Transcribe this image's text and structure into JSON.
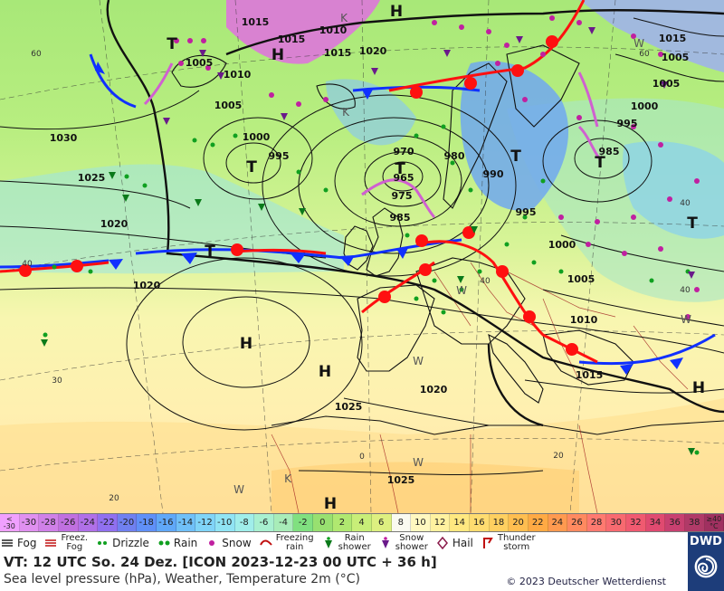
{
  "colors": {
    "cold_front": "#1030ff",
    "warm_front": "#ff1010",
    "occlusion": "#d060d0",
    "isobar": "#111111",
    "brand": "#1d3d7a"
  },
  "map": {
    "pressure_labels": [
      "1015",
      "1010",
      "1020",
      "1015",
      "1010",
      "1005",
      "1005",
      "1000",
      "1005",
      "1015",
      "1005",
      "1000",
      "995",
      "1030",
      "995",
      "985",
      "990",
      "970",
      "965",
      "975",
      "985",
      "980",
      "1025",
      "1020",
      "995",
      "1000",
      "1020",
      "1005",
      "1010",
      "1015",
      "1020",
      "1025",
      "1025",
      "1015"
    ],
    "high_labels": [
      "H",
      "H",
      "H",
      "H",
      "H",
      "H"
    ],
    "low_labels": [
      "T",
      "T",
      "T",
      "T",
      "T",
      "T",
      "T"
    ],
    "lat_labels": [
      "60",
      "40",
      "40",
      "30",
      "20",
      "20",
      "40",
      "60",
      "40"
    ],
    "lon_labels": [
      "0"
    ],
    "weather_letters": [
      "K",
      "K",
      "W",
      "W",
      "W",
      "K",
      "W",
      "W",
      "W"
    ]
  },
  "scale": {
    "low_edge": [
      "<",
      "-30"
    ],
    "values": [
      "-30",
      "-28",
      "-26",
      "-24",
      "-22",
      "-20",
      "-18",
      "-16",
      "-14",
      "-12",
      "-10",
      "-8",
      "-6",
      "-4",
      "-2",
      "0",
      "2",
      "4",
      "6",
      "8",
      "10",
      "12",
      "14",
      "16",
      "18",
      "20",
      "22",
      "24",
      "26",
      "28",
      "30",
      "32",
      "34",
      "36",
      "38"
    ],
    "high_edge": [
      "≥40",
      "°C"
    ],
    "cell_colors": [
      "#f0a0ff",
      "#e090f0",
      "#d080e8",
      "#c070e0",
      "#b070e8",
      "#9070f0",
      "#7080f0",
      "#6090f8",
      "#60a8f8",
      "#70c0f8",
      "#80d4f8",
      "#90e4f4",
      "#a0eeea",
      "#a8f0d0",
      "#a8ecb8",
      "#80e080",
      "#98e070",
      "#b0e870",
      "#c8ee78",
      "#ddf080",
      "#fafaf0",
      "#fff8c0",
      "#fff2a0",
      "#ffe880",
      "#ffdc70",
      "#ffd060",
      "#ffbe50",
      "#ffaa44",
      "#ff9a50",
      "#ff8a60",
      "#ff7a70",
      "#f86a70",
      "#f05a70",
      "#e04a70",
      "#c84070",
      "#b03a68",
      "#a03060"
    ]
  },
  "legend": {
    "fog": "Fog",
    "freezing_fog": [
      "Freez.",
      "Fog"
    ],
    "drizzle": "Drizzle",
    "rain": "Rain",
    "snow": "Snow",
    "freezing_rain": [
      "Freezing",
      "rain"
    ],
    "rain_shower": [
      "Rain",
      "shower"
    ],
    "snow_shower": [
      "Snow",
      "shower"
    ],
    "hail": "Hail",
    "thunderstorm": [
      "Thunder",
      "storm"
    ]
  },
  "info": {
    "valid_time": "VT: 12 UTC So.  24 Dez. [ICON 2023-12-23  00 UTC + 36 h]",
    "subtitle": "Sea level pressure (hPa), Weather, Temperature 2m (°C)",
    "copyright": "© 2023 Deutscher Wetterdienst",
    "logo_text": "DWD"
  }
}
